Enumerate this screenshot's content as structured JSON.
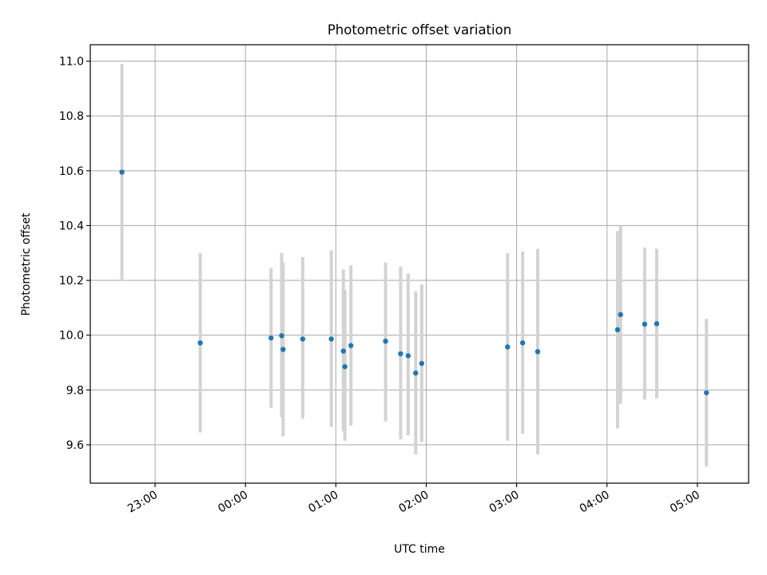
{
  "chart_data": {
    "type": "scatter",
    "title": "Photometric offset variation",
    "xlabel": "UTC time",
    "ylabel": "Photometric offset",
    "xlim": [
      "22:17",
      "05:34"
    ],
    "ylim": [
      9.46,
      11.06
    ],
    "grid": true,
    "x_ticks": [
      "23:00",
      "00:00",
      "01:00",
      "02:00",
      "03:00",
      "04:00",
      "05:00"
    ],
    "y_ticks": [
      "9.6",
      "9.8",
      "10.0",
      "10.2",
      "10.4",
      "10.6",
      "10.8",
      "11.0"
    ],
    "colors": {
      "point": "#1f77b4",
      "errorbar": "#d3d3d3",
      "grid": "#b0b0b0"
    },
    "points": [
      {
        "time": "22:38",
        "y": 10.595,
        "low": 10.2,
        "high": 10.99
      },
      {
        "time": "23:30",
        "y": 9.972,
        "low": 9.645,
        "high": 10.3
      },
      {
        "time": "00:17",
        "y": 9.99,
        "low": 9.735,
        "high": 10.245
      },
      {
        "time": "00:24",
        "y": 9.998,
        "low": 9.7,
        "high": 10.3
      },
      {
        "time": "00:25",
        "y": 9.948,
        "low": 9.63,
        "high": 10.265
      },
      {
        "time": "00:38",
        "y": 9.986,
        "low": 9.695,
        "high": 10.285
      },
      {
        "time": "00:57",
        "y": 9.986,
        "low": 9.665,
        "high": 10.31
      },
      {
        "time": "01:05",
        "y": 9.942,
        "low": 9.65,
        "high": 10.24
      },
      {
        "time": "01:06",
        "y": 9.885,
        "low": 9.615,
        "high": 10.165
      },
      {
        "time": "01:10",
        "y": 9.962,
        "low": 9.67,
        "high": 10.255
      },
      {
        "time": "01:33",
        "y": 9.978,
        "low": 9.685,
        "high": 10.265
      },
      {
        "time": "01:43",
        "y": 9.932,
        "low": 9.62,
        "high": 10.25
      },
      {
        "time": "01:48",
        "y": 9.925,
        "low": 9.635,
        "high": 10.225
      },
      {
        "time": "01:53",
        "y": 9.862,
        "low": 9.565,
        "high": 10.16
      },
      {
        "time": "01:57",
        "y": 9.897,
        "low": 9.61,
        "high": 10.185
      },
      {
        "time": "02:54",
        "y": 9.957,
        "low": 9.615,
        "high": 10.3
      },
      {
        "time": "03:04",
        "y": 9.972,
        "low": 9.64,
        "high": 10.305
      },
      {
        "time": "03:14",
        "y": 9.94,
        "low": 9.565,
        "high": 10.315
      },
      {
        "time": "04:07",
        "y": 10.02,
        "low": 9.66,
        "high": 10.38
      },
      {
        "time": "04:09",
        "y": 10.075,
        "low": 9.75,
        "high": 10.4
      },
      {
        "time": "04:25",
        "y": 10.04,
        "low": 9.765,
        "high": 10.32
      },
      {
        "time": "04:33",
        "y": 10.042,
        "low": 9.77,
        "high": 10.315
      },
      {
        "time": "05:06",
        "y": 9.79,
        "low": 9.52,
        "high": 10.06
      }
    ]
  }
}
